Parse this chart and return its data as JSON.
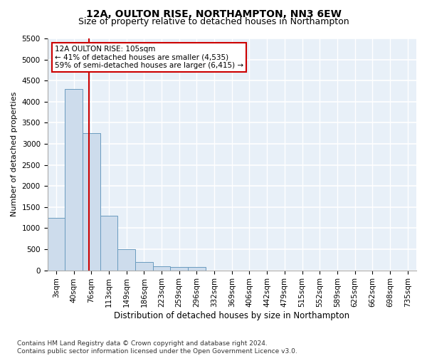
{
  "title1": "12A, OULTON RISE, NORTHAMPTON, NN3 6EW",
  "title2": "Size of property relative to detached houses in Northampton",
  "xlabel": "Distribution of detached houses by size in Northampton",
  "ylabel": "Number of detached properties",
  "footnote": "Contains HM Land Registry data © Crown copyright and database right 2024.\nContains public sector information licensed under the Open Government Licence v3.0.",
  "bin_labels": [
    "3sqm",
    "40sqm",
    "76sqm",
    "113sqm",
    "149sqm",
    "186sqm",
    "223sqm",
    "259sqm",
    "296sqm",
    "332sqm",
    "369sqm",
    "406sqm",
    "442sqm",
    "479sqm",
    "515sqm",
    "552sqm",
    "589sqm",
    "625sqm",
    "662sqm",
    "698sqm",
    "735sqm"
  ],
  "bar_heights": [
    1250,
    4300,
    3250,
    1300,
    500,
    200,
    100,
    75,
    75,
    0,
    0,
    0,
    0,
    0,
    0,
    0,
    0,
    0,
    0,
    0,
    0
  ],
  "bar_color": "#cddcec",
  "bar_edge_color": "#6a9bbf",
  "vline_x": 1.87,
  "vline_color": "#cc0000",
  "annotation_text": "12A OULTON RISE: 105sqm\n← 41% of detached houses are smaller (4,535)\n59% of semi-detached houses are larger (6,415) →",
  "annotation_box_color": "white",
  "annotation_box_edge": "#cc0000",
  "ylim": [
    0,
    5500
  ],
  "yticks": [
    0,
    500,
    1000,
    1500,
    2000,
    2500,
    3000,
    3500,
    4000,
    4500,
    5000,
    5500
  ],
  "background_color": "#e8f0f8",
  "grid_color": "white",
  "title1_fontsize": 10,
  "title2_fontsize": 9,
  "xlabel_fontsize": 8.5,
  "ylabel_fontsize": 8,
  "tick_fontsize": 7.5,
  "footnote_fontsize": 6.5
}
